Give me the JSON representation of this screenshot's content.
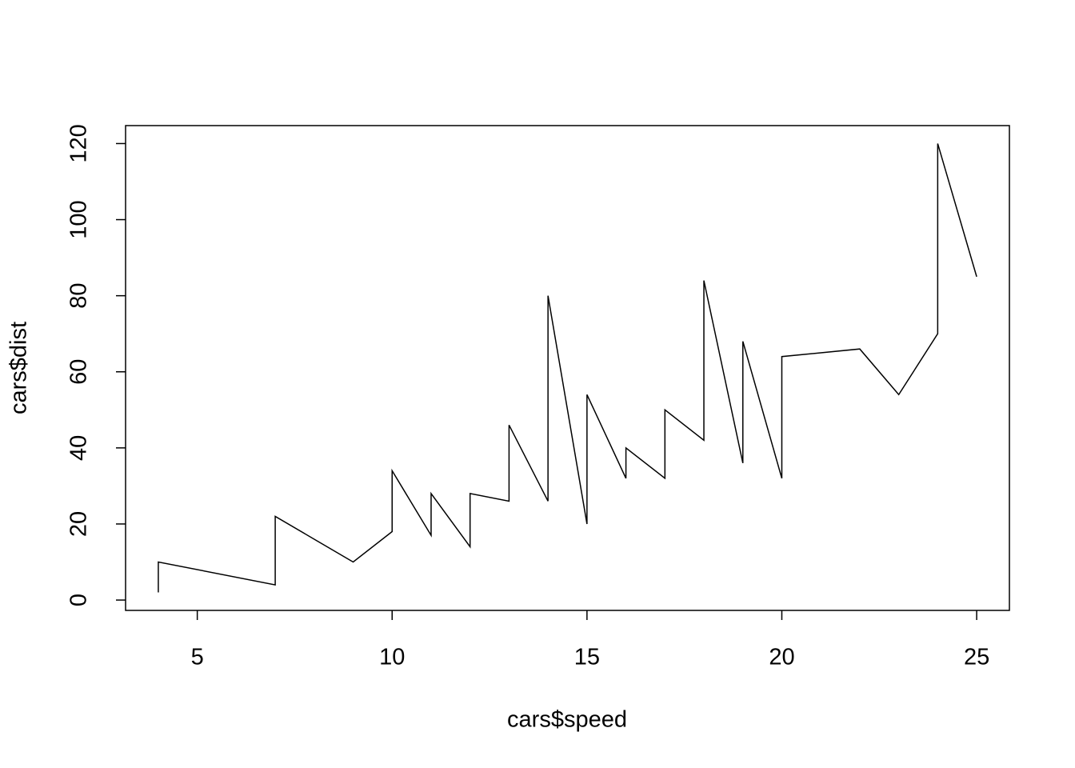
{
  "chart_data": {
    "type": "line",
    "x_label": "cars$speed",
    "y_label": "cars$dist",
    "x": [
      4,
      4,
      7,
      7,
      8,
      9,
      10,
      10,
      10,
      11,
      11,
      12,
      12,
      12,
      12,
      13,
      13,
      13,
      13,
      14,
      14,
      14,
      14,
      15,
      15,
      15,
      16,
      16,
      17,
      17,
      17,
      18,
      18,
      18,
      18,
      19,
      19,
      19,
      20,
      20,
      20,
      20,
      20,
      22,
      23,
      24,
      24,
      24,
      24,
      25
    ],
    "values": [
      2,
      10,
      4,
      22,
      16,
      10,
      18,
      26,
      34,
      17,
      28,
      14,
      20,
      24,
      28,
      26,
      34,
      34,
      46,
      26,
      36,
      60,
      80,
      20,
      26,
      54,
      32,
      40,
      32,
      40,
      50,
      42,
      56,
      76,
      84,
      36,
      46,
      68,
      32,
      48,
      52,
      56,
      64,
      66,
      54,
      70,
      92,
      93,
      120,
      85
    ],
    "color": "#000000",
    "xlim": [
      3.16,
      25.84
    ],
    "xticks": [
      5,
      10,
      15,
      20,
      25
    ],
    "ylim": [
      -2.72,
      124.72
    ],
    "yticks": [
      0,
      20,
      40,
      60,
      80,
      100,
      120
    ],
    "grid": false
  }
}
